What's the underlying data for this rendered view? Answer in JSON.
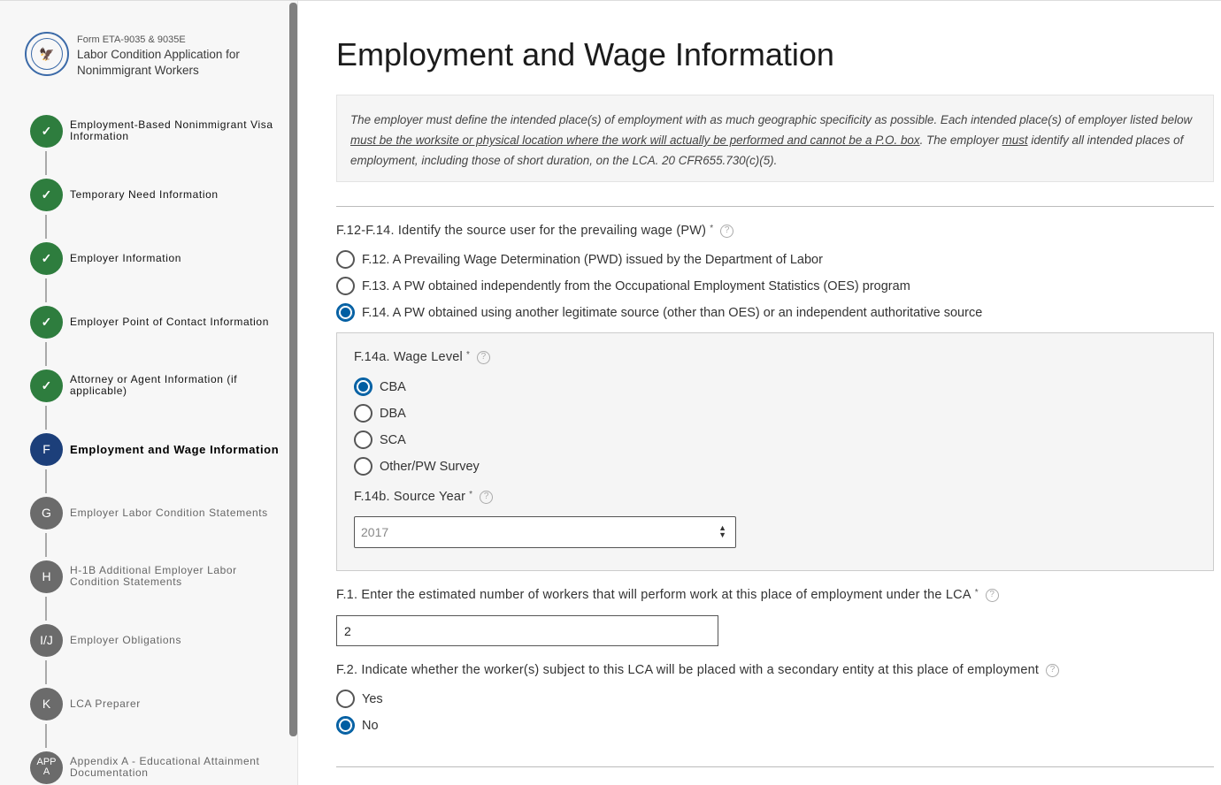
{
  "sidebar": {
    "form_id": "Form ETA-9035 & 9035E",
    "app_title": "Labor Condition Application for Nonimmigrant Workers",
    "steps": [
      {
        "badge": "✓",
        "label": "Employment-Based Nonimmigrant Visa Information",
        "status": "complete"
      },
      {
        "badge": "✓",
        "label": "Temporary Need Information",
        "status": "complete"
      },
      {
        "badge": "✓",
        "label": "Employer Information",
        "status": "complete"
      },
      {
        "badge": "✓",
        "label": "Employer Point of Contact Information",
        "status": "complete"
      },
      {
        "badge": "✓",
        "label": "Attorney or Agent Information (if applicable)",
        "status": "complete"
      },
      {
        "badge": "F",
        "label": "Employment and Wage Information",
        "status": "current"
      },
      {
        "badge": "G",
        "label": "Employer Labor Condition Statements",
        "status": "pending"
      },
      {
        "badge": "H",
        "label": "H-1B Additional Employer Labor Condition Statements",
        "status": "pending"
      },
      {
        "badge": "I/J",
        "label": "Employer Obligations",
        "status": "pending"
      },
      {
        "badge": "K",
        "label": "LCA Preparer",
        "status": "pending"
      },
      {
        "badge": "APP A",
        "label": "Appendix A - Educational Attainment Documentation",
        "status": "pending"
      }
    ]
  },
  "main": {
    "title": "Employment and Wage Information",
    "info": {
      "p1": "The employer must define the intended place(s) of employment with as much geographic specificity as possible. Each intended place(s) of employer listed below ",
      "u1": "must be the worksite or physical location where the work will actually be performed and cannot be a P.O. box",
      "p2": ". The employer ",
      "u2": "must",
      "p3": " identify all intended places of employment, including those of short duration, on the LCA. 20 CFR655.730(c)(5)."
    },
    "pw_source": {
      "label": "F.12-F.14. Identify the source user for the prevailing wage (PW)",
      "required": "*",
      "options": [
        {
          "label": "F.12. A Prevailing Wage Determination (PWD) issued by the Department of Labor",
          "selected": false
        },
        {
          "label": "F.13. A PW obtained independently from the Occupational Employment Statistics (OES) program",
          "selected": false
        },
        {
          "label": "F.14. A PW obtained using another legitimate source (other than OES) or an independent authoritative source",
          "selected": true
        }
      ]
    },
    "wage_level": {
      "label": "F.14a. Wage Level",
      "required": "*",
      "options": [
        {
          "label": "CBA",
          "selected": true
        },
        {
          "label": "DBA",
          "selected": false
        },
        {
          "label": "SCA",
          "selected": false
        },
        {
          "label": "Other/PW Survey",
          "selected": false
        }
      ]
    },
    "source_year": {
      "label": "F.14b. Source Year",
      "required": "*",
      "value": "2017"
    },
    "workers": {
      "label": "F.1. Enter the estimated number of workers that will perform work at this place of employment under the LCA",
      "required": "*",
      "value": "2"
    },
    "secondary": {
      "label": "F.2. Indicate whether the worker(s) subject to this LCA will be placed with a secondary entity at this place of employment",
      "options": [
        {
          "label": "Yes",
          "selected": false
        },
        {
          "label": "No",
          "selected": true
        }
      ]
    },
    "help_glyph": "?"
  }
}
